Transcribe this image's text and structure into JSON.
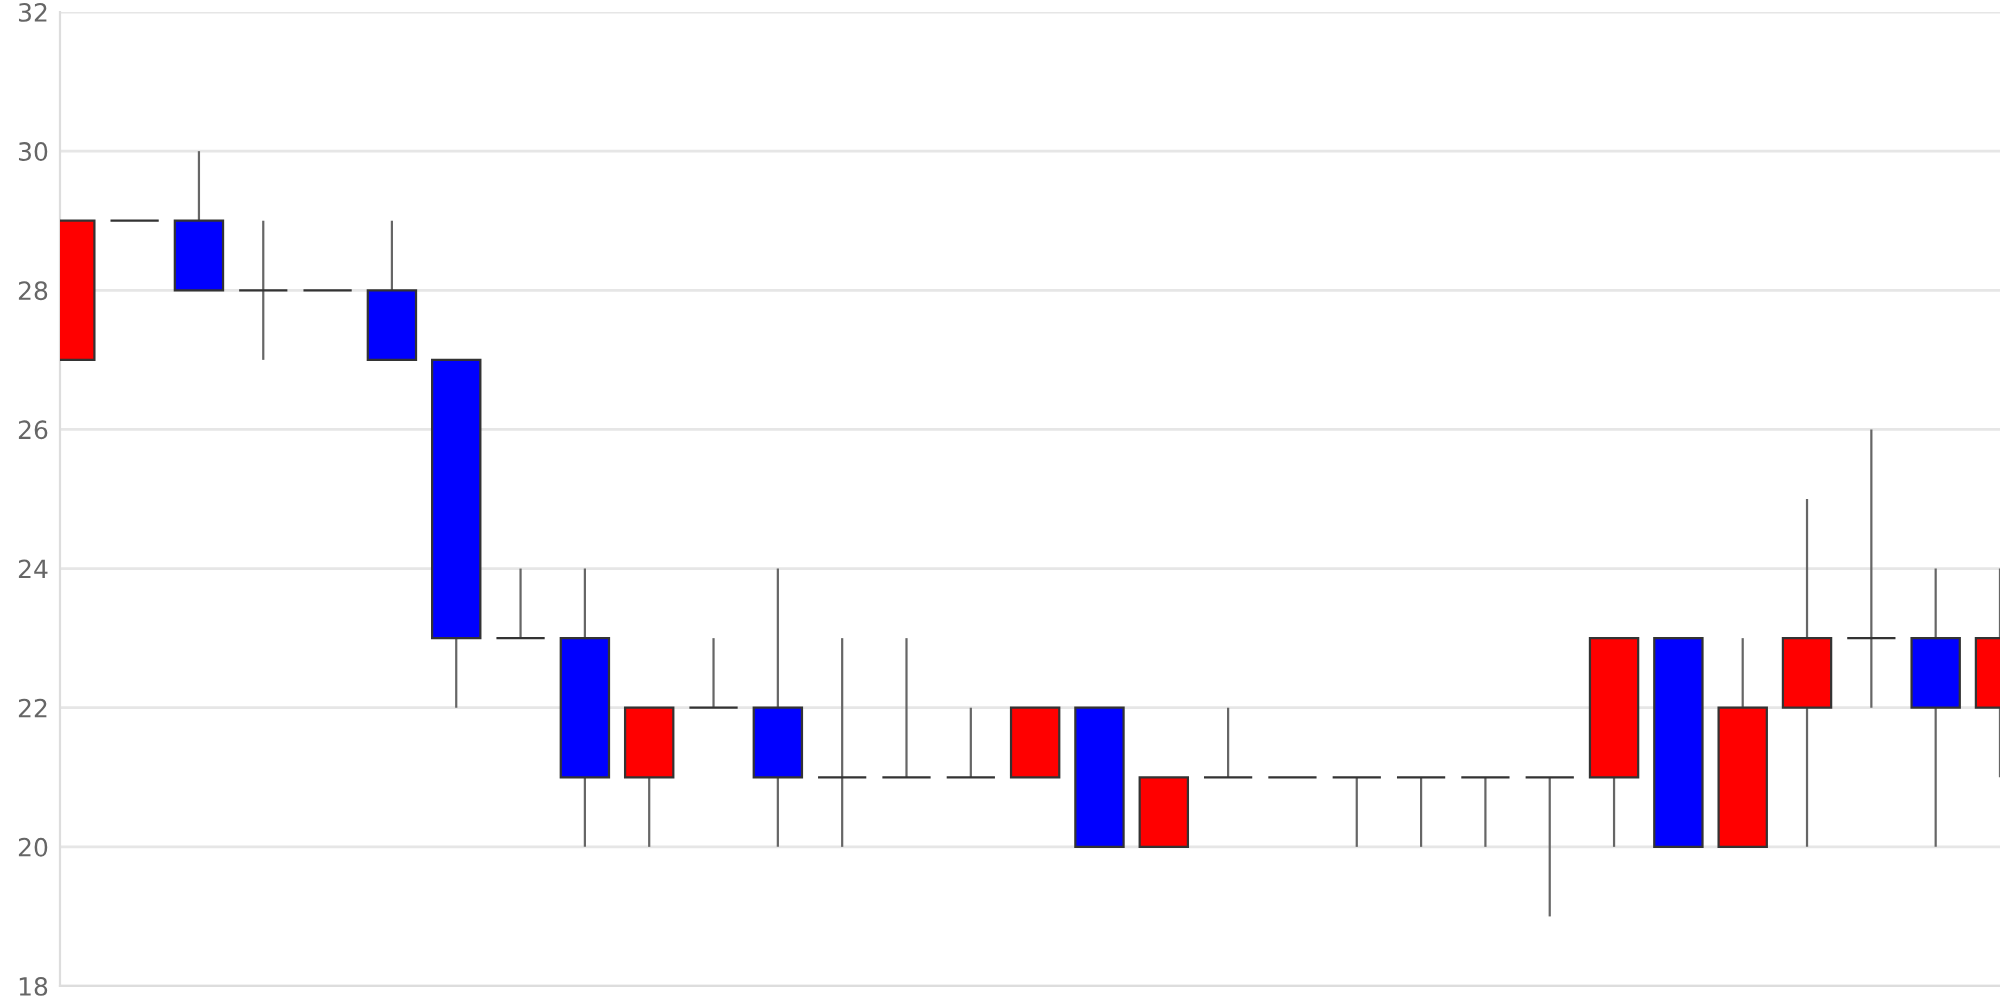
{
  "chart_data": {
    "type": "candlestick",
    "categories": [
      null,
      null,
      null,
      null,
      null,
      null,
      null,
      null,
      null,
      null,
      null,
      null,
      null,
      null,
      null,
      null,
      null,
      null,
      null,
      null,
      null,
      null,
      null,
      null,
      null,
      null,
      null,
      null,
      null,
      null,
      null
    ],
    "ohlc": [
      [
        27,
        29,
        27,
        29
      ],
      [
        29,
        29,
        29,
        29
      ],
      [
        29,
        30,
        28,
        28
      ],
      [
        28,
        29,
        27,
        28
      ],
      [
        28,
        28,
        28,
        28
      ],
      [
        28,
        29,
        27,
        27
      ],
      [
        27,
        27,
        22,
        23
      ],
      [
        23,
        24,
        23,
        23
      ],
      [
        23,
        24,
        20,
        21
      ],
      [
        21,
        22,
        20,
        22
      ],
      [
        22,
        23,
        22,
        22
      ],
      [
        22,
        24,
        20,
        21
      ],
      [
        21,
        23,
        20,
        21
      ],
      [
        21,
        23,
        21,
        21
      ],
      [
        21,
        22,
        21,
        21
      ],
      [
        21,
        22,
        21,
        22
      ],
      [
        22,
        22,
        20,
        20
      ],
      [
        20,
        21,
        20,
        21
      ],
      [
        21,
        22,
        21,
        21
      ],
      [
        21,
        21,
        21,
        21
      ],
      [
        21,
        21,
        20,
        21
      ],
      [
        21,
        21,
        20,
        21
      ],
      [
        21,
        21,
        20,
        21
      ],
      [
        21,
        21,
        19,
        21
      ],
      [
        21,
        23,
        20,
        23
      ],
      [
        23,
        23,
        20,
        20
      ],
      [
        20,
        23,
        20,
        22
      ],
      [
        22,
        25,
        20,
        23
      ],
      [
        23,
        26,
        22,
        23
      ],
      [
        23,
        24,
        20,
        22
      ],
      [
        22,
        24,
        21,
        23
      ]
    ],
    "colors": [
      "#ff0000",
      "#333333",
      "#0000ff",
      "#333333",
      "#333333",
      "#0000ff",
      "#0000ff",
      "#333333",
      "#0000ff",
      "#ff0000",
      "#333333",
      "#0000ff",
      "#333333",
      "#333333",
      "#333333",
      "#ff0000",
      "#0000ff",
      "#ff0000",
      "#333333",
      "#333333",
      "#333333",
      "#333333",
      "#333333",
      "#333333",
      "#ff0000",
      "#0000ff",
      "#ff0000",
      "#ff0000",
      "#333333",
      "#0000ff",
      "#ff0000"
    ],
    "ylim": [
      18,
      32
    ],
    "yticks": [
      18,
      20,
      22,
      24,
      26,
      28,
      30,
      32
    ],
    "grid": "y",
    "tick_labels": "y"
  }
}
